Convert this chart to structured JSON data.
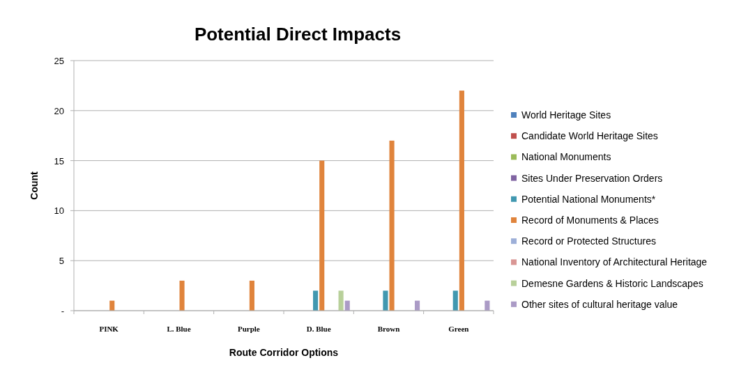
{
  "chart_data": {
    "type": "bar",
    "title": "Potential Direct Impacts",
    "xlabel": "Route Corridor Options",
    "ylabel": "Count",
    "categories": [
      "PINK",
      "L. Blue",
      "Purple",
      "D. Blue",
      "Brown",
      "Green"
    ],
    "series": [
      {
        "name": "World Heritage Sites",
        "color": "#4f81bd",
        "values": [
          0,
          0,
          0,
          0,
          0,
          0
        ]
      },
      {
        "name": "Candidate World Heritage Sites",
        "color": "#c0504d",
        "values": [
          0,
          0,
          0,
          0,
          0,
          0
        ]
      },
      {
        "name": "National Monuments",
        "color": "#9bbb59",
        "values": [
          0,
          0,
          0,
          0,
          0,
          0
        ]
      },
      {
        "name": "Sites Under Preservation Orders",
        "color": "#8064a2",
        "values": [
          0,
          0,
          0,
          0,
          0,
          0
        ]
      },
      {
        "name": "Potential National Monuments*",
        "color": "#4198b0",
        "values": [
          0,
          0,
          0,
          2,
          2,
          2
        ]
      },
      {
        "name": "Record of Monuments & Places",
        "color": "#e0843c",
        "values": [
          1,
          3,
          3,
          15,
          17,
          22
        ]
      },
      {
        "name": "Record or Protected Structures",
        "color": "#9dafd8",
        "values": [
          0,
          0,
          0,
          0,
          0,
          0
        ]
      },
      {
        "name": "National Inventory of Architectural Heritage",
        "color": "#d99694",
        "values": [
          0,
          0,
          0,
          0,
          0,
          0
        ]
      },
      {
        "name": "Demesne Gardens & Historic Landscapes",
        "color": "#b8d09a",
        "values": [
          0,
          0,
          0,
          2,
          0,
          0
        ]
      },
      {
        "name": "Other sites of cultural heritage value",
        "color": "#ab9bc6",
        "values": [
          0,
          0,
          0,
          1,
          1,
          1
        ]
      }
    ],
    "ylim": [
      0,
      25
    ],
    "yticks": [
      {
        "value": 0,
        "label": "-"
      },
      5,
      10,
      15,
      20,
      25
    ],
    "grid": "y",
    "legend": "right"
  }
}
